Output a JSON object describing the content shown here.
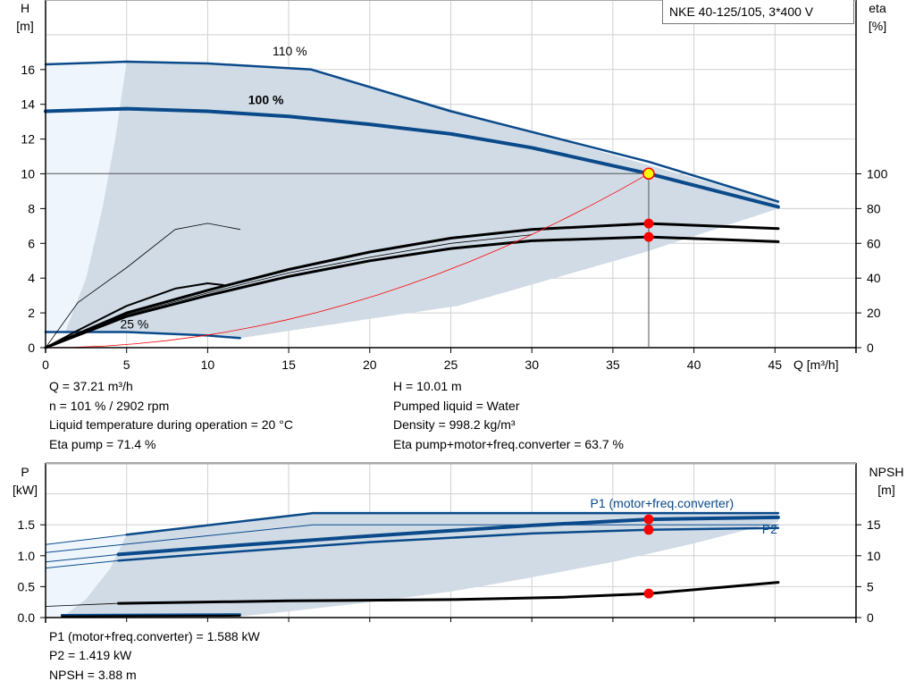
{
  "title": "NKE 40-125/105, 3*400 V",
  "colors": {
    "curve_blue": "#0b4a8a",
    "area_dark": "#d0dbe6",
    "area_light": "#eef5fd",
    "duty_point": "#ffff00",
    "marker_red": "#ff0000",
    "system_curve": "#ff0000",
    "grid": "#d0d0d0"
  },
  "chart_data": [
    {
      "type": "line",
      "id": "head",
      "ylabel": [
        "H",
        "[m]"
      ],
      "y2label": [
        "eta",
        "[%]"
      ],
      "xlabel": "Q [m³/h]",
      "xlim": [
        0,
        50
      ],
      "ylim": [
        0,
        20
      ],
      "y2lim": [
        0,
        200
      ],
      "xticks": [
        0,
        5,
        10,
        15,
        20,
        25,
        30,
        35,
        40,
        45
      ],
      "yticks": [
        0,
        2,
        4,
        6,
        8,
        10,
        12,
        14,
        16
      ],
      "y2ticks": [
        0,
        20,
        40,
        60,
        80,
        100
      ],
      "grid": true,
      "curve_labels": [
        {
          "text": "110 %",
          "x": 14,
          "y": 16.8,
          "bold": false
        },
        {
          "text": "100 %",
          "x": 12.5,
          "y": 14.0,
          "bold": true
        },
        {
          "text": "25 %",
          "x": 4.6,
          "y": 1.1,
          "bold": false
        }
      ],
      "areas": [
        {
          "name": "light",
          "points": [
            [
              0,
              0.9
            ],
            [
              0,
              16.3
            ],
            [
              5,
              16.45
            ],
            [
              4.3,
              12
            ],
            [
              3.5,
              8
            ],
            [
              2.5,
              4
            ],
            [
              1.2,
              0.9
            ]
          ]
        },
        {
          "name": "dark",
          "points": [
            [
              1.2,
              0.9
            ],
            [
              2.5,
              4
            ],
            [
              3.5,
              8
            ],
            [
              4.3,
              12
            ],
            [
              5,
              16.45
            ],
            [
              10,
              16.35
            ],
            [
              16.4,
              16.0
            ],
            [
              30,
              12.4
            ],
            [
              45.2,
              8.4
            ],
            [
              45.2,
              8.0
            ],
            [
              37,
              5.5
            ],
            [
              25.4,
              2.4
            ],
            [
              12,
              0.55
            ],
            [
              5,
              0.9
            ]
          ]
        }
      ],
      "series": [
        {
          "style": "blue-med",
          "points": [
            [
              0,
              16.3
            ],
            [
              5,
              16.45
            ],
            [
              10,
              16.35
            ],
            [
              16.4,
              16.0
            ],
            [
              25,
              13.6
            ],
            [
              37.2,
              10.7
            ],
            [
              45.2,
              8.4
            ]
          ]
        },
        {
          "style": "blue-thick",
          "points": [
            [
              0,
              13.6
            ],
            [
              5,
              13.75
            ],
            [
              10,
              13.6
            ],
            [
              15,
              13.3
            ],
            [
              20,
              12.85
            ],
            [
              25,
              12.3
            ],
            [
              30,
              11.5
            ],
            [
              37.21,
              10.01
            ],
            [
              45.2,
              8.1
            ]
          ]
        },
        {
          "style": "blue-med",
          "points": [
            [
              0,
              0.9
            ],
            [
              5,
              0.9
            ],
            [
              10,
              0.7
            ],
            [
              12,
              0.55
            ]
          ]
        },
        {
          "style": "black-thin",
          "points": [
            [
              0,
              0
            ],
            [
              2,
              2.6
            ],
            [
              5,
              4.6
            ],
            [
              8,
              6.8
            ],
            [
              10,
              7.15
            ],
            [
              12,
              6.8
            ]
          ]
        },
        {
          "style": "black-med",
          "points": [
            [
              0,
              0
            ],
            [
              2,
              1.0
            ],
            [
              5,
              2.4
            ],
            [
              8,
              3.4
            ],
            [
              10,
              3.7
            ],
            [
              11,
              3.6
            ]
          ]
        },
        {
          "style": "black-thick",
          "points": [
            [
              0,
              0
            ],
            [
              5,
              2.0
            ],
            [
              10,
              3.3
            ],
            [
              15,
              4.5
            ],
            [
              20,
              5.5
            ],
            [
              25,
              6.3
            ],
            [
              30,
              6.8
            ],
            [
              37.21,
              7.14
            ],
            [
              45.2,
              6.85
            ]
          ]
        },
        {
          "style": "black-thick",
          "points": [
            [
              0,
              0
            ],
            [
              5,
              1.8
            ],
            [
              10,
              3.0
            ],
            [
              15,
              4.1
            ],
            [
              20,
              5.0
            ],
            [
              25,
              5.7
            ],
            [
              30,
              6.15
            ],
            [
              37.21,
              6.37
            ],
            [
              45.2,
              6.1
            ]
          ]
        },
        {
          "style": "black-thin",
          "points": [
            [
              0,
              0
            ],
            [
              5,
              1.9
            ],
            [
              10,
              3.15
            ],
            [
              15,
              4.3
            ],
            [
              20,
              5.2
            ],
            [
              25,
              6.0
            ],
            [
              30,
              6.5
            ]
          ]
        },
        {
          "style": "red-thin",
          "points": "system"
        }
      ],
      "operating_point": {
        "Q": 37.21,
        "H": 10.01,
        "eta_pump": 71.4,
        "eta_total": 63.7
      }
    },
    {
      "type": "line",
      "id": "power",
      "ylabel": [
        "P",
        "[kW]"
      ],
      "y2label": [
        "NPSH",
        "[m]"
      ],
      "xlim": [
        0,
        50
      ],
      "ylim": [
        0,
        2.5
      ],
      "y2lim": [
        0,
        25
      ],
      "yticks": [
        0.0,
        0.5,
        1.0,
        1.5
      ],
      "ytick_labels": [
        "0.0",
        "0.5",
        "1.0",
        "1.5"
      ],
      "y2ticks": [
        0,
        5,
        10,
        15
      ],
      "grid": true,
      "curve_labels": [
        {
          "text": "P1 (motor+freq.converter)",
          "x": 33.6,
          "y": 1.78,
          "bold": false,
          "blue": true
        },
        {
          "text": "P2",
          "x": 44.2,
          "y": 1.36,
          "bold": false,
          "blue": true
        }
      ],
      "areas": [
        {
          "name": "light",
          "points": [
            [
              0,
              0
            ],
            [
              0,
              1.18
            ],
            [
              5,
              1.34
            ],
            [
              4,
              0.8
            ],
            [
              2.5,
              0.3
            ],
            [
              1,
              0
            ]
          ]
        },
        {
          "name": "dark",
          "points": [
            [
              1,
              0
            ],
            [
              2.5,
              0.3
            ],
            [
              4,
              0.8
            ],
            [
              5,
              1.34
            ],
            [
              16.5,
              1.69
            ],
            [
              45.2,
              1.69
            ],
            [
              45.2,
              1.55
            ],
            [
              40,
              1.2
            ],
            [
              35,
              0.9
            ],
            [
              30,
              0.65
            ],
            [
              25,
              0.42
            ],
            [
              20,
              0.25
            ],
            [
              15,
              0.1
            ],
            [
              12,
              0.02
            ]
          ]
        }
      ],
      "series": [
        {
          "style": "blue-thin",
          "points": [
            [
              0,
              1.18
            ],
            [
              5,
              1.34
            ]
          ]
        },
        {
          "style": "blue-med",
          "points": [
            [
              5,
              1.34
            ],
            [
              16.5,
              1.69
            ],
            [
              45.2,
              1.69
            ]
          ]
        },
        {
          "style": "blue-thin",
          "points": [
            [
              0,
              1.05
            ],
            [
              16.5,
              1.5
            ],
            [
              45.2,
              1.5
            ]
          ]
        },
        {
          "style": "blue-thin",
          "points": [
            [
              0,
              0.9
            ],
            [
              4.5,
              1.02
            ]
          ]
        },
        {
          "style": "blue-thick",
          "points": [
            [
              4.5,
              1.02
            ],
            [
              12,
              1.17
            ],
            [
              20,
              1.32
            ],
            [
              30,
              1.49
            ],
            [
              37.21,
              1.588
            ],
            [
              45.2,
              1.62
            ]
          ]
        },
        {
          "style": "blue-thin",
          "points": [
            [
              0,
              0.8
            ],
            [
              4.5,
              0.92
            ]
          ]
        },
        {
          "style": "blue-med",
          "points": [
            [
              4.5,
              0.92
            ],
            [
              12,
              1.07
            ],
            [
              20,
              1.22
            ],
            [
              30,
              1.36
            ],
            [
              37.21,
              1.419
            ],
            [
              45.2,
              1.45
            ]
          ]
        },
        {
          "style": "black-thin",
          "points": [
            [
              0,
              0.18
            ],
            [
              4.5,
              0.23
            ]
          ]
        },
        {
          "style": "black-thick",
          "points": [
            [
              4.5,
              0.23
            ],
            [
              15,
              0.27
            ],
            [
              25,
              0.29
            ],
            [
              32,
              0.33
            ],
            [
              37.21,
              0.388
            ],
            [
              45.2,
              0.57
            ]
          ]
        },
        {
          "style": "blue-med",
          "points": [
            [
              1,
              0.04
            ],
            [
              12,
              0.05
            ]
          ]
        },
        {
          "style": "black-med",
          "points": [
            [
              1,
              0.02
            ],
            [
              12,
              0.03
            ]
          ]
        }
      ],
      "markers": [
        [
          37.21,
          1.588
        ],
        [
          37.21,
          1.419
        ],
        [
          37.21,
          0.388
        ]
      ]
    }
  ],
  "info_top": {
    "left": [
      "Q = 37.21 m³/h",
      "n = 101 % / 2902 rpm",
      "Liquid temperature during operation = 20 °C",
      "Eta pump = 71.4 %"
    ],
    "right": [
      "H = 10.01 m",
      "Pumped liquid = Water",
      "Density = 998.2 kg/m³",
      "Eta pump+motor+freq.converter = 63.7 %"
    ]
  },
  "info_bottom": [
    "P1 (motor+freq.converter) = 1.588 kW",
    "P2 = 1.419 kW",
    "NPSH = 3.88 m"
  ]
}
